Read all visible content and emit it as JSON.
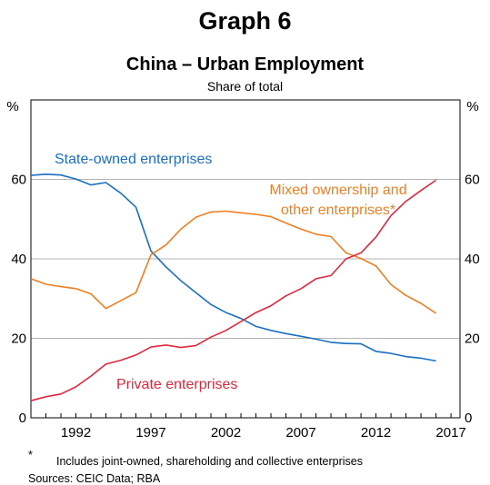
{
  "header": {
    "graph_label": "Graph 6",
    "title": "China – Urban Employment",
    "subtitle": "Share of total"
  },
  "footer": {
    "footnote_marker": "*",
    "footnote_text": "Includes joint-owned, shareholding and collective enterprises",
    "sources": "Sources: CEIC Data; RBA"
  },
  "chart_data": {
    "type": "line",
    "title": "China – Urban Employment",
    "subtitle": "Share of total",
    "ylabel_left": "%",
    "ylabel_right": "%",
    "xlim": [
      1989,
      2017.6
    ],
    "ylim": [
      0,
      80
    ],
    "x_ticks": [
      1992,
      1997,
      2002,
      2007,
      2012,
      2017
    ],
    "y_ticks": [
      0,
      20,
      40,
      60
    ],
    "grid": true,
    "colors": {
      "State-owned enterprises": "#1a6fc2",
      "Mixed ownership and other enterprises*": "#f07f24",
      "Private enterprises": "#e0283d"
    },
    "series": [
      {
        "name": "State-owned enterprises",
        "label_lines": [
          "State-owned enterprises"
        ],
        "x": [
          1989,
          1990,
          1991,
          1992,
          1993,
          1994,
          1995,
          1996,
          1997,
          1998,
          1999,
          2000,
          2001,
          2002,
          2003,
          2004,
          2005,
          2006,
          2007,
          2008,
          2009,
          2010,
          2011,
          2012,
          2013,
          2014,
          2015,
          2016
        ],
        "values": [
          61.0,
          61.3,
          61.1,
          60.1,
          58.6,
          59.2,
          56.5,
          53.0,
          42.0,
          38.0,
          34.5,
          31.5,
          28.5,
          26.5,
          25.0,
          23.0,
          22.0,
          21.2,
          20.5,
          19.8,
          19.0,
          18.7,
          18.6,
          16.7,
          16.2,
          15.4,
          15.0,
          14.3
        ]
      },
      {
        "name": "Mixed ownership and other enterprises*",
        "label_lines": [
          "Mixed ownership and",
          "other enterprises*"
        ],
        "x": [
          1989,
          1990,
          1991,
          1992,
          1993,
          1994,
          1995,
          1996,
          1997,
          1998,
          1999,
          2000,
          2001,
          2002,
          2003,
          2004,
          2005,
          2006,
          2007,
          2008,
          2009,
          2010,
          2011,
          2012,
          2013,
          2014,
          2015,
          2016
        ],
        "values": [
          35.0,
          33.6,
          33.0,
          32.5,
          31.2,
          27.5,
          29.5,
          31.5,
          41.0,
          43.5,
          47.5,
          50.5,
          51.8,
          52.0,
          51.6,
          51.2,
          50.6,
          49.0,
          47.5,
          46.2,
          45.6,
          41.5,
          40.1,
          38.2,
          33.5,
          30.8,
          28.8,
          26.3
        ]
      },
      {
        "name": "Private enterprises",
        "label_lines": [
          "Private enterprises"
        ],
        "x": [
          1989,
          1990,
          1991,
          1992,
          1993,
          1994,
          1995,
          1996,
          1997,
          1998,
          1999,
          2000,
          2001,
          2002,
          2003,
          2004,
          2005,
          2006,
          2007,
          2008,
          2009,
          2010,
          2011,
          2012,
          2013,
          2014,
          2015,
          2016
        ],
        "values": [
          4.3,
          5.3,
          6.0,
          7.8,
          10.5,
          13.5,
          14.5,
          15.8,
          17.8,
          18.3,
          17.7,
          18.2,
          20.3,
          22.0,
          24.2,
          26.5,
          28.2,
          30.7,
          32.5,
          35.0,
          35.8,
          40.0,
          41.5,
          45.5,
          50.9,
          54.5,
          57.2,
          59.8
        ]
      }
    ]
  }
}
